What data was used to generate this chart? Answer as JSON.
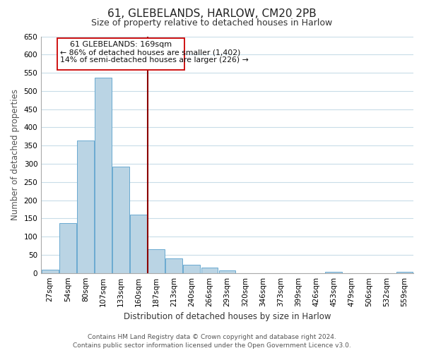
{
  "title": "61, GLEBELANDS, HARLOW, CM20 2PB",
  "subtitle": "Size of property relative to detached houses in Harlow",
  "xlabel": "Distribution of detached houses by size in Harlow",
  "ylabel": "Number of detached properties",
  "bar_labels": [
    "27sqm",
    "54sqm",
    "80sqm",
    "107sqm",
    "133sqm",
    "160sqm",
    "187sqm",
    "213sqm",
    "240sqm",
    "266sqm",
    "293sqm",
    "320sqm",
    "346sqm",
    "373sqm",
    "399sqm",
    "426sqm",
    "453sqm",
    "479sqm",
    "506sqm",
    "532sqm",
    "559sqm"
  ],
  "bar_values": [
    10,
    137,
    363,
    537,
    293,
    160,
    65,
    40,
    22,
    14,
    7,
    0,
    0,
    0,
    0,
    0,
    3,
    0,
    0,
    0,
    3
  ],
  "bar_color": "#bad4e4",
  "bar_edge_color": "#6aaad0",
  "property_line_x": 5.5,
  "annotation_text_line1": "61 GLEBELANDS: 169sqm",
  "annotation_text_line2": "← 86% of detached houses are smaller (1,402)",
  "annotation_text_line3": "14% of semi-detached houses are larger (226) →",
  "ylim": [
    0,
    650
  ],
  "yticks": [
    0,
    50,
    100,
    150,
    200,
    250,
    300,
    350,
    400,
    450,
    500,
    550,
    600,
    650
  ],
  "footer_line1": "Contains HM Land Registry data © Crown copyright and database right 2024.",
  "footer_line2": "Contains public sector information licensed under the Open Government Licence v3.0.",
  "bg_color": "#ffffff",
  "grid_color": "#c8dce8",
  "title_fontsize": 11,
  "subtitle_fontsize": 9,
  "axis_label_fontsize": 8.5,
  "tick_fontsize": 7.5,
  "footer_fontsize": 6.5
}
